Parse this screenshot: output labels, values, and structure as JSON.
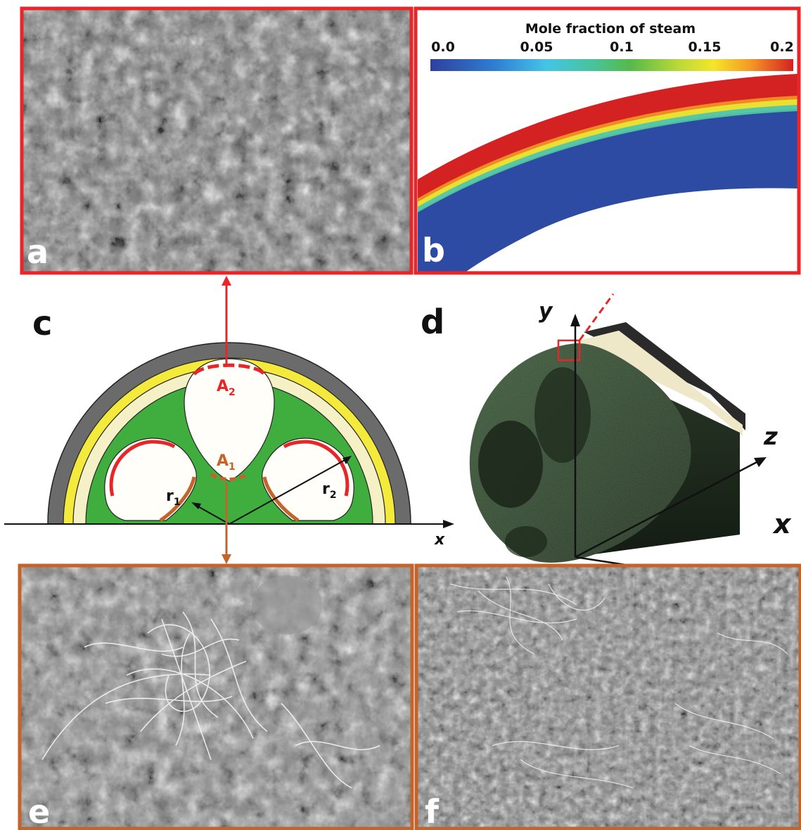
{
  "panels": {
    "a": {
      "letter": "a"
    },
    "b": {
      "letter": "b",
      "colorbar_title": "Mole fraction of steam",
      "ticks": [
        "0.0",
        "0.05",
        "0.1",
        "0.15",
        "0.2"
      ]
    },
    "c": {
      "letter": "c",
      "labels": {
        "A2_main": "A",
        "A2_sub": "2",
        "A1_main": "A",
        "A1_sub": "1",
        "r1_main": "r",
        "r1_sub": "1",
        "r2_main": "r",
        "r2_sub": "2",
        "x_axis": "x"
      }
    },
    "d": {
      "letter": "d",
      "axes": {
        "y": "y",
        "z": "z",
        "x": "x"
      }
    },
    "e": {
      "letter": "e"
    },
    "f": {
      "letter": "f"
    }
  },
  "colors": {
    "frame_red": "#e8262a",
    "frame_orange": "#c4632a",
    "outer_shell": "#6b6b6b",
    "yellow_layer": "#f3ea3c",
    "cream_layer": "#f6f0c6",
    "green_support": "#3fae3f",
    "channel_fill": "#fffef8",
    "steam_high": "#d42121",
    "steam_low": "#2e4ba3",
    "arrow_red": "#e8262a",
    "arrow_orange": "#c4632a"
  }
}
